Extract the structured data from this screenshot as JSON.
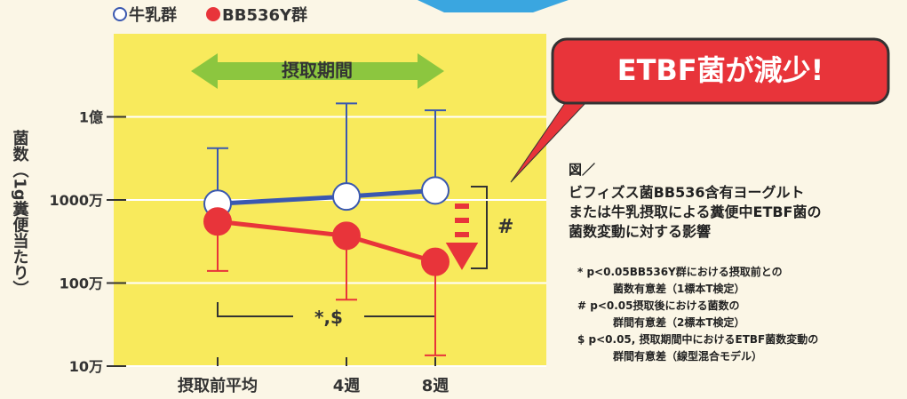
{
  "chart_data": {
    "type": "line",
    "log_y": true,
    "y_label": "菌数（1g糞便当たり）",
    "categories": [
      "摂取前平均",
      "4週",
      "8週"
    ],
    "ylim": [
      100000,
      1000000000
    ],
    "yticks": [
      {
        "value": 100000,
        "label": "10万"
      },
      {
        "value": 1000000,
        "label": "100万"
      },
      {
        "value": 10000000,
        "label": "1000万"
      },
      {
        "value": 100000000,
        "label": "1億"
      }
    ],
    "grid": true,
    "series": [
      {
        "name": "牛乳群",
        "color": "#3a58b0",
        "marker_fill": "#ffffff",
        "values": [
          9000000,
          11000000,
          13000000
        ],
        "error_end": [
          42000000,
          145000000,
          120000000
        ]
      },
      {
        "name": "BB536Y群",
        "color": "#e8343a",
        "marker_fill": "#e8343a",
        "values": [
          5500000,
          3700000,
          1800000
        ],
        "error_end": [
          1400000,
          630000,
          135000
        ]
      }
    ],
    "annotations": {
      "period": "摂取期間",
      "callout": "ETBF菌が減少!",
      "between": "#",
      "within": "*,$"
    }
  },
  "caption": {
    "label": "図／",
    "lines": [
      "ビフィズス菌BB536含有ヨーグルト",
      "または牛乳摂取による糞便中ETBF菌の",
      "菌数変動に対する影響"
    ]
  },
  "notes": [
    "* p<0.05BB536Y群における摂取前との",
    "菌数有意差（1標本T検定）",
    "# p<0.05摂取後における菌数の",
    "群間有意差（2標本T検定）",
    "$ p<0.05, 摂取期間中におけるETBF菌数変動の",
    "群間有意差（線型混合モデル）"
  ]
}
